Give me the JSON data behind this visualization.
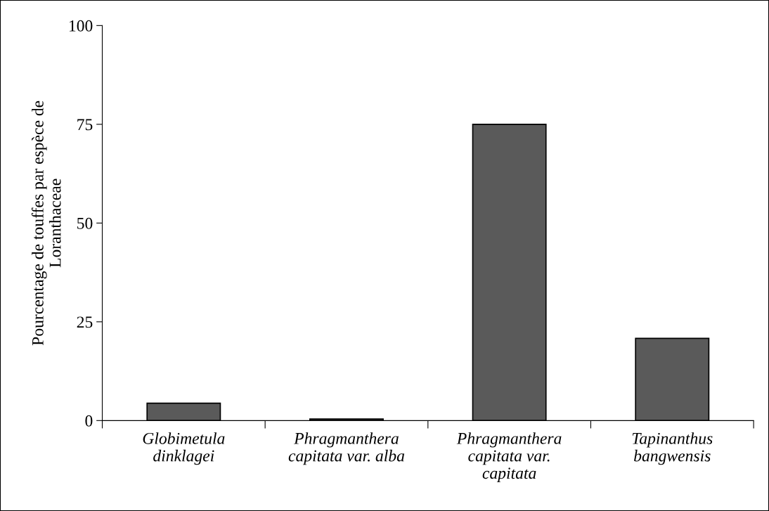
{
  "chart_data": {
    "type": "bar",
    "ylabel": "Pourcentage de touffes par espèce de Loranthaceae",
    "categories": [
      "Globimetula dinklagei",
      "Phragmanthera capitata var. alba",
      "Phragmanthera capitata var. capitata",
      "Tapinanthus bangwensis"
    ],
    "values": [
      4.4,
      0.4,
      75,
      20.8
    ],
    "color": "#5a5a5a",
    "ylim": [
      0,
      100
    ],
    "yticks": [
      0,
      25,
      50,
      75,
      100
    ],
    "grid": false
  }
}
